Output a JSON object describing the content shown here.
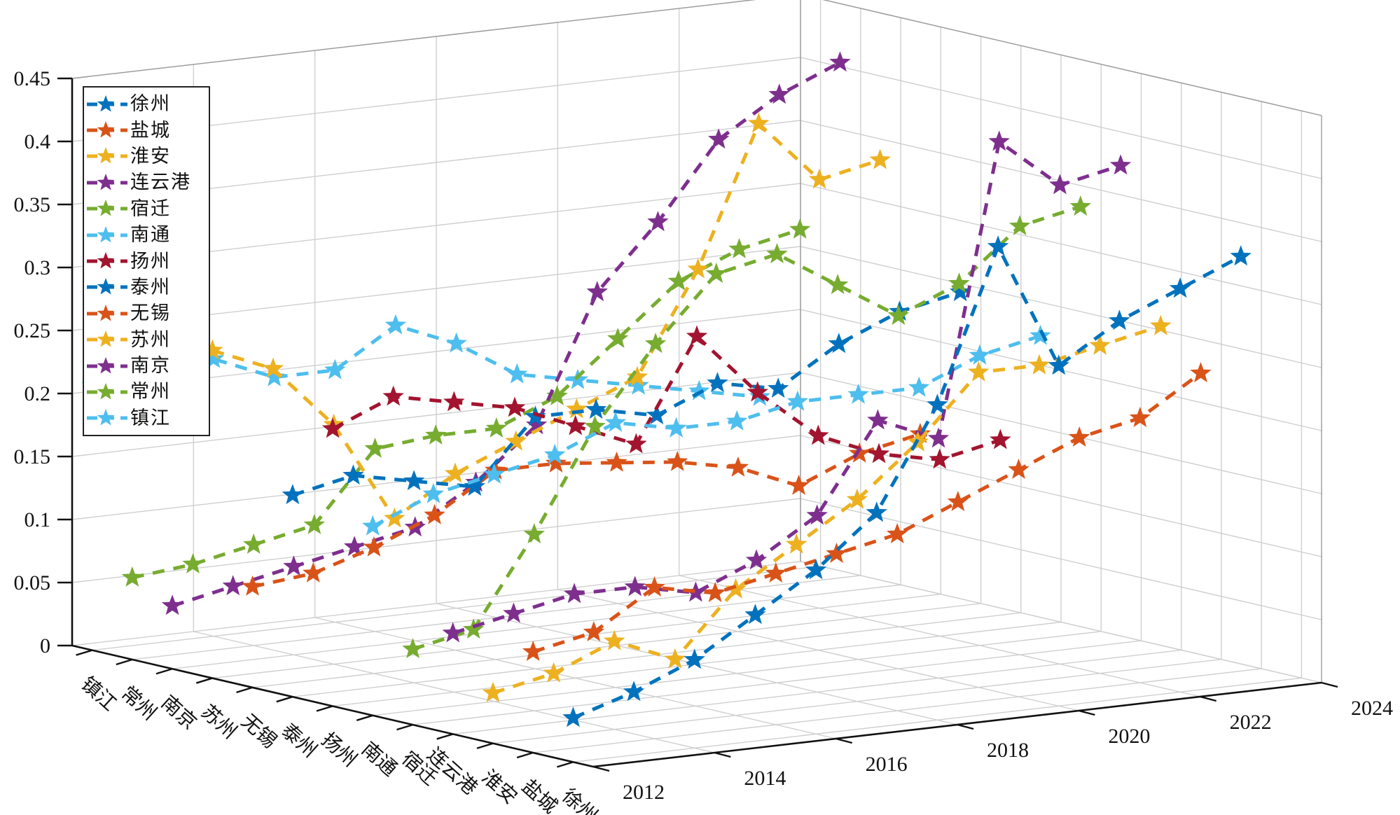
{
  "chart_data": {
    "type": "line3d",
    "title": "",
    "x_years": [
      2012,
      2013,
      2014,
      2015,
      2016,
      2017,
      2018,
      2019,
      2020,
      2021,
      2022,
      2023
    ],
    "x_axis": {
      "ticks": [
        "2012",
        "2014",
        "2016",
        "2018",
        "2020",
        "2022",
        "2024"
      ],
      "range": [
        2012,
        2024
      ]
    },
    "y_axis": {
      "categories_front_to_back": [
        "徐州",
        "盐城",
        "淮安",
        "连云港",
        "宿迁",
        "南通",
        "扬州",
        "泰州",
        "无锡",
        "苏州",
        "南京",
        "常州",
        "镇江"
      ]
    },
    "z_axis": {
      "ticks": [
        "0",
        "0.05",
        "0.1",
        "0.15",
        "0.2",
        "0.25",
        "0.3",
        "0.35",
        "0.4",
        "0.45"
      ],
      "range": [
        0,
        0.45
      ]
    },
    "grid": true,
    "marker": "pentagram-star",
    "line_style": "dashed",
    "legend_position": "top-left",
    "background": "#ffffff",
    "series": [
      {
        "id": "xuzhou",
        "name": "徐州",
        "color": "#0072BD",
        "values": [
          0.035,
          0.05,
          0.07,
          0.1,
          0.13,
          0.17,
          0.25,
          0.37,
          0.27,
          0.3,
          0.32,
          0.34
        ]
      },
      {
        "id": "yancheng",
        "name": "盐城",
        "color": "#D95319",
        "values": [
          0.08,
          0.09,
          0.12,
          0.11,
          0.12,
          0.13,
          0.14,
          0.16,
          0.18,
          0.2,
          0.21,
          0.24
        ]
      },
      {
        "id": "huaian",
        "name": "淮安",
        "color": "#EDB120",
        "values": [
          0.04,
          0.05,
          0.07,
          0.05,
          0.1,
          0.13,
          0.16,
          0.2,
          0.25,
          0.25,
          0.26,
          0.27
        ]
      },
      {
        "id": "lianyungang",
        "name": "连云港",
        "color": "#7E2F8E",
        "values": [
          0.08,
          0.09,
          0.1,
          0.1,
          0.09,
          0.11,
          0.14,
          0.21,
          0.19,
          0.42,
          0.38,
          0.39
        ]
      },
      {
        "id": "suqian",
        "name": "宿迁",
        "color": "#77AC30",
        "values": [
          0.06,
          0.07,
          0.14,
          0.22,
          0.28,
          0.33,
          0.34,
          0.31,
          0.28,
          0.3,
          0.34,
          0.35
        ]
      },
      {
        "id": "nantong",
        "name": "南通",
        "color": "#4DBEEE",
        "values": [
          0.15,
          0.17,
          0.18,
          0.19,
          0.21,
          0.2,
          0.2,
          0.21,
          0.21,
          0.21,
          0.23,
          0.24
        ]
      },
      {
        "id": "yangzhou",
        "name": "扬州",
        "color": "#A2142F",
        "values": [
          0.22,
          0.24,
          0.23,
          0.22,
          0.2,
          0.18,
          0.26,
          0.21,
          0.17,
          0.15,
          0.14,
          0.15
        ]
      },
      {
        "id": "taizhou",
        "name": "泰州",
        "color": "#0072BD",
        "values": [
          0.16,
          0.17,
          0.16,
          0.15,
          0.2,
          0.2,
          0.19,
          0.21,
          0.2,
          0.23,
          0.25,
          0.26
        ]
      },
      {
        "id": "wuxi",
        "name": "无锡",
        "color": "#D95319",
        "values": [
          0.08,
          0.085,
          0.1,
          0.12,
          0.15,
          0.15,
          0.145,
          0.14,
          0.13,
          0.11,
          0.13,
          0.14
        ]
      },
      {
        "id": "suzhou",
        "name": "苏州",
        "color": "#EDB120",
        "values": [
          0.26,
          0.24,
          0.19,
          0.11,
          0.14,
          0.16,
          0.18,
          0.2,
          0.28,
          0.39,
          0.34,
          0.35
        ]
      },
      {
        "id": "nanjing",
        "name": "南京",
        "color": "#7E2F8E",
        "values": [
          0.05,
          0.06,
          0.07,
          0.08,
          0.09,
          0.12,
          0.16,
          0.26,
          0.31,
          0.37,
          0.4,
          0.42
        ]
      },
      {
        "id": "changzhou",
        "name": "常州",
        "color": "#77AC30",
        "values": [
          0.065,
          0.07,
          0.08,
          0.09,
          0.145,
          0.15,
          0.15,
          0.17,
          0.21,
          0.25,
          0.27,
          0.28
        ]
      },
      {
        "id": "zhenjiang",
        "name": "镇江",
        "color": "#4DBEEE",
        "values": [
          0.21,
          0.215,
          0.22,
          0.2,
          0.2,
          0.23,
          0.21,
          0.18,
          0.17,
          0.16,
          0.15,
          0.14
        ]
      }
    ]
  }
}
